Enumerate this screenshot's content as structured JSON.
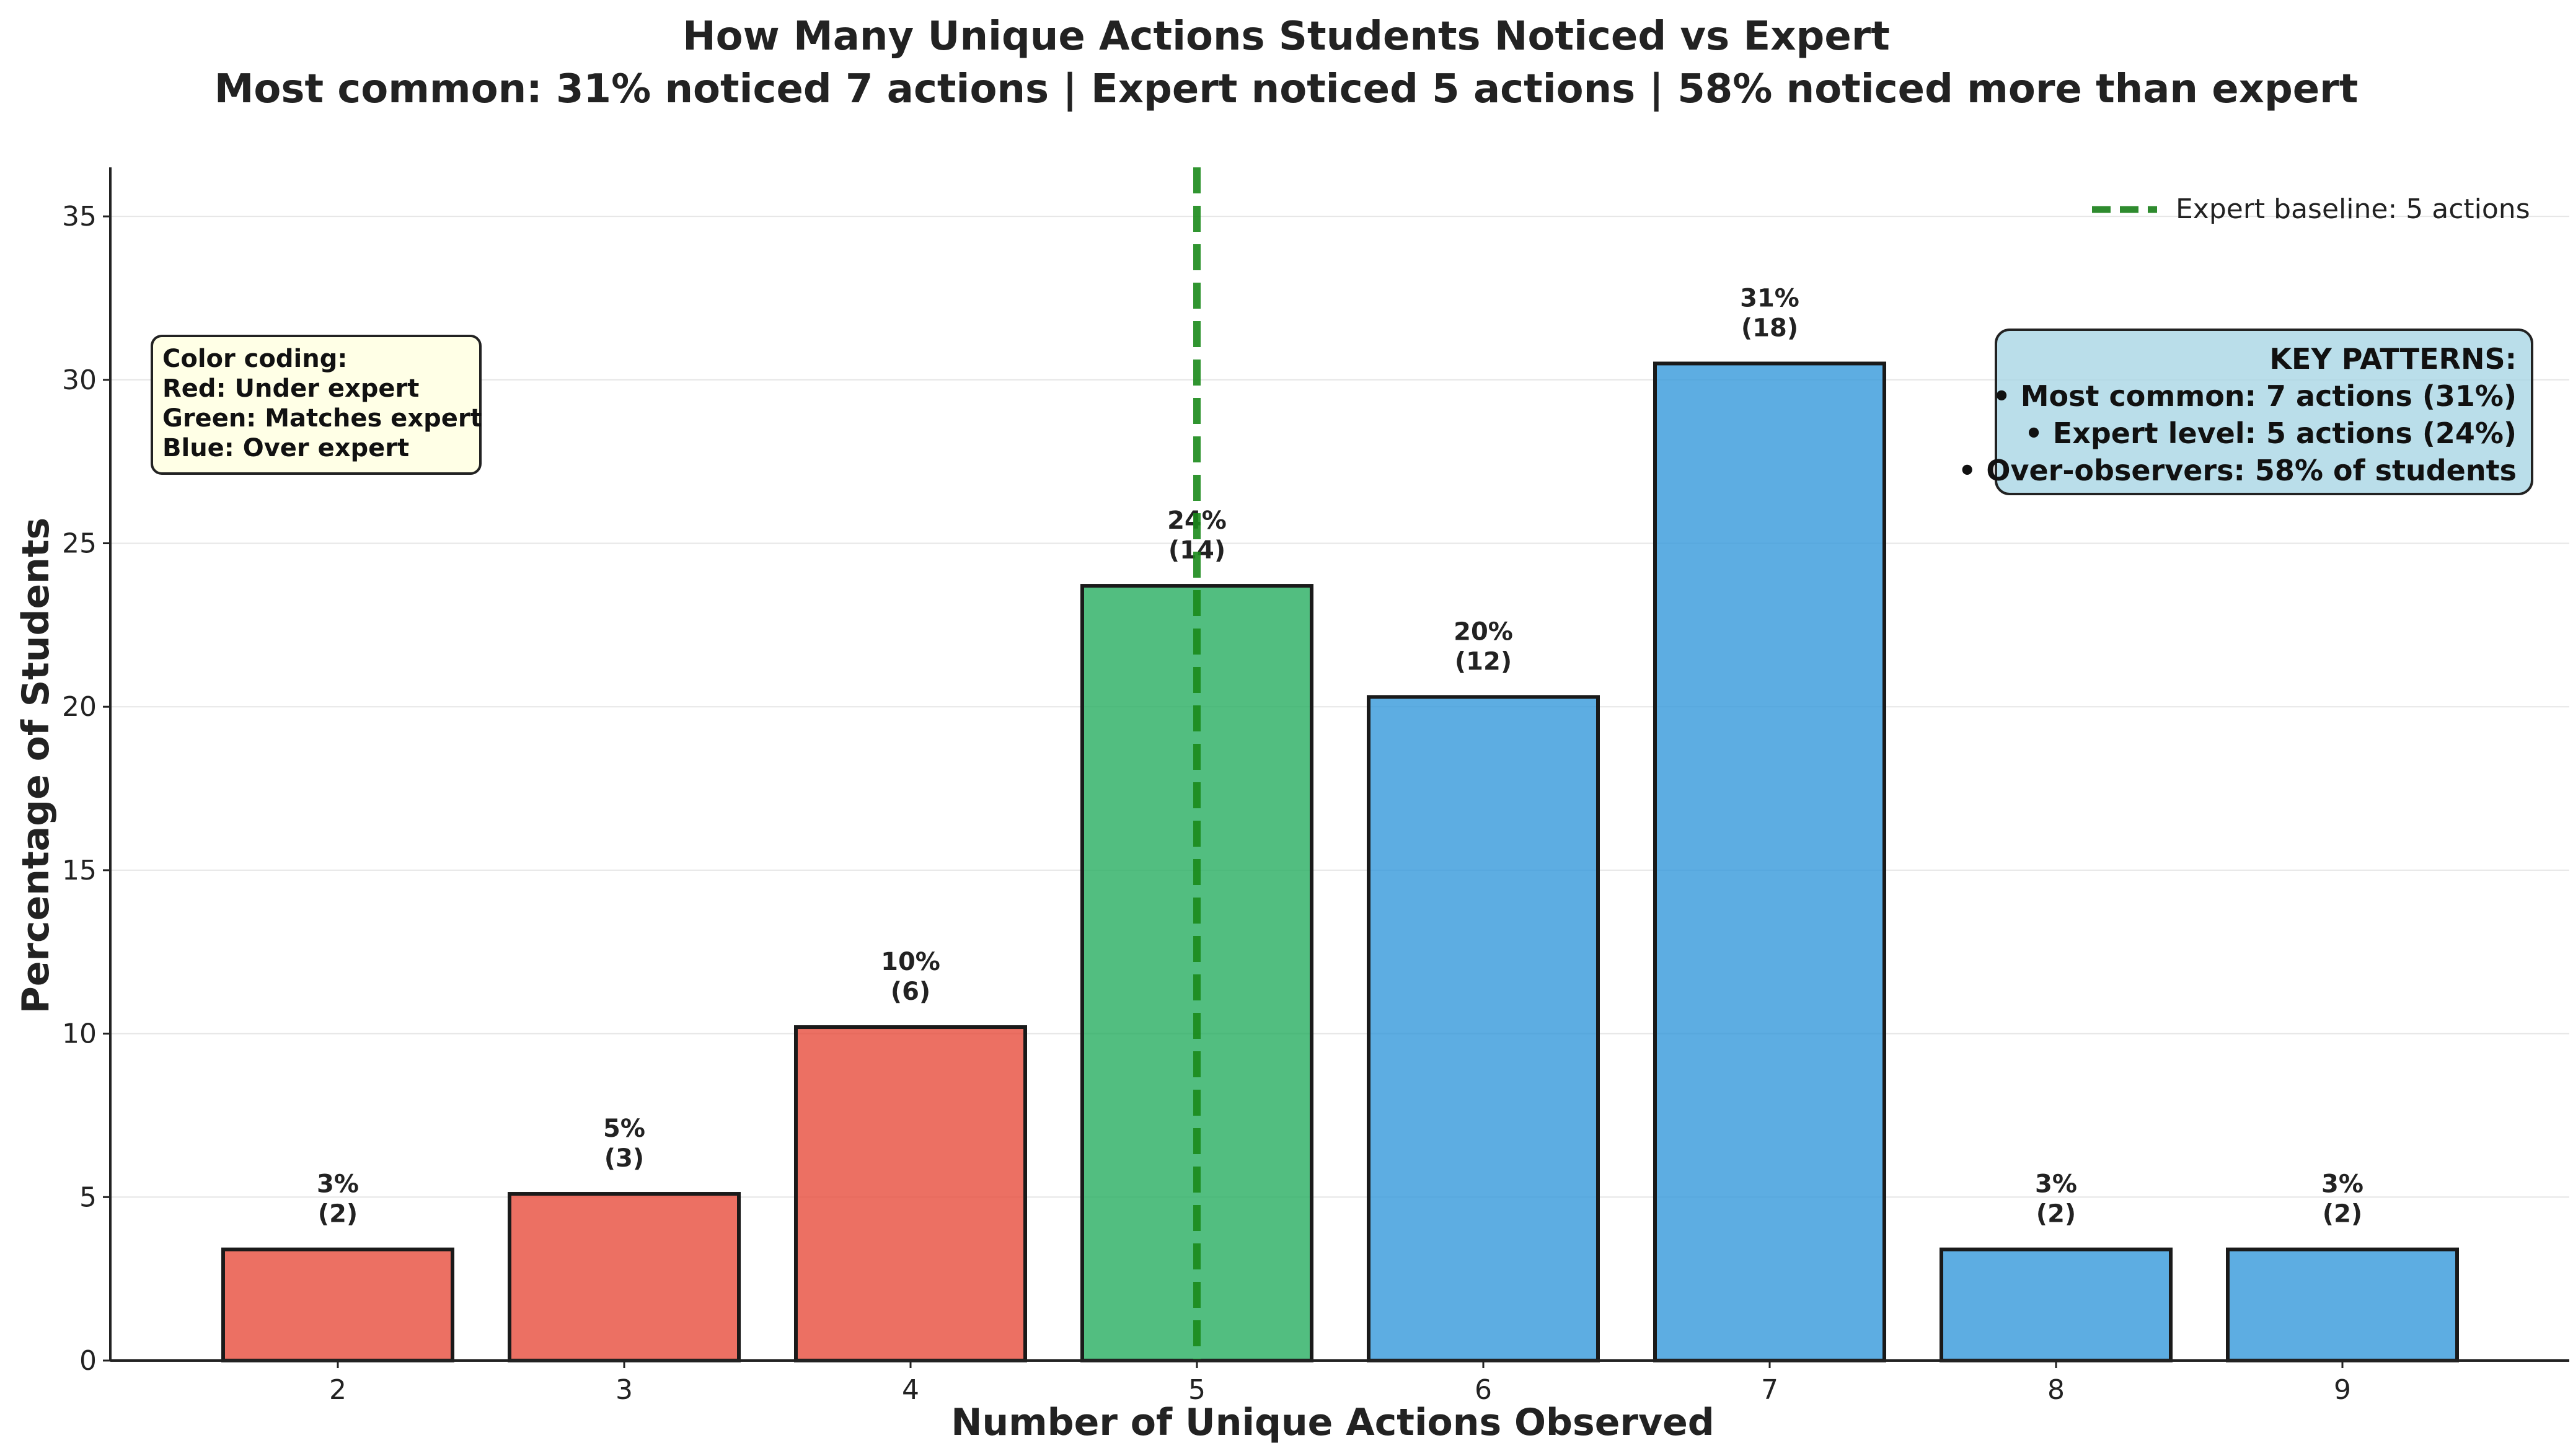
{
  "chart_data": {
    "type": "bar",
    "title": "How Many Unique Actions Students Noticed vs Expert",
    "subtitle": "Most common: 31% noticed 7 actions | Expert noticed 5 actions | 58% noticed more than expert",
    "xlabel": "Number of Unique Actions Observed",
    "ylabel": "Percentage of Students",
    "categories": [
      "2",
      "3",
      "4",
      "5",
      "6",
      "7",
      "8",
      "9"
    ],
    "values": [
      3.4,
      5.1,
      10.2,
      23.7,
      20.3,
      30.5,
      3.4,
      3.4
    ],
    "data_labels": [
      {
        "pct": "3%",
        "count": "(2)"
      },
      {
        "pct": "5%",
        "count": "(3)"
      },
      {
        "pct": "10%",
        "count": "(6)"
      },
      {
        "pct": "24%",
        "count": "(14)"
      },
      {
        "pct": "20%",
        "count": "(12)"
      },
      {
        "pct": "31%",
        "count": "(18)"
      },
      {
        "pct": "3%",
        "count": "(2)"
      },
      {
        "pct": "3%",
        "count": "(2)"
      }
    ],
    "bar_colors": [
      "#e74c3c",
      "#e74c3c",
      "#e74c3c",
      "#27ae60",
      "#3498db",
      "#3498db",
      "#3498db",
      "#3498db"
    ],
    "ylim": [
      0,
      36.5
    ],
    "yticks": [
      0,
      5,
      10,
      15,
      20,
      25,
      30,
      35
    ],
    "grid": "horizontal",
    "reference_line": {
      "x": 5,
      "label": "Expert baseline: 5 actions",
      "color": "#1a8a1a",
      "style": "dashed"
    },
    "legend_position": "top-right",
    "annotations": {
      "color_coding": [
        "Color coding:",
        "Red: Under expert",
        "Green: Matches expert",
        "Blue: Over expert"
      ],
      "key_patterns": [
        "KEY PATTERNS:",
        "• Most common: 7 actions (31%)",
        "• Expert level: 5 actions (24%)",
        "• Over-observers: 58% of students"
      ]
    }
  }
}
